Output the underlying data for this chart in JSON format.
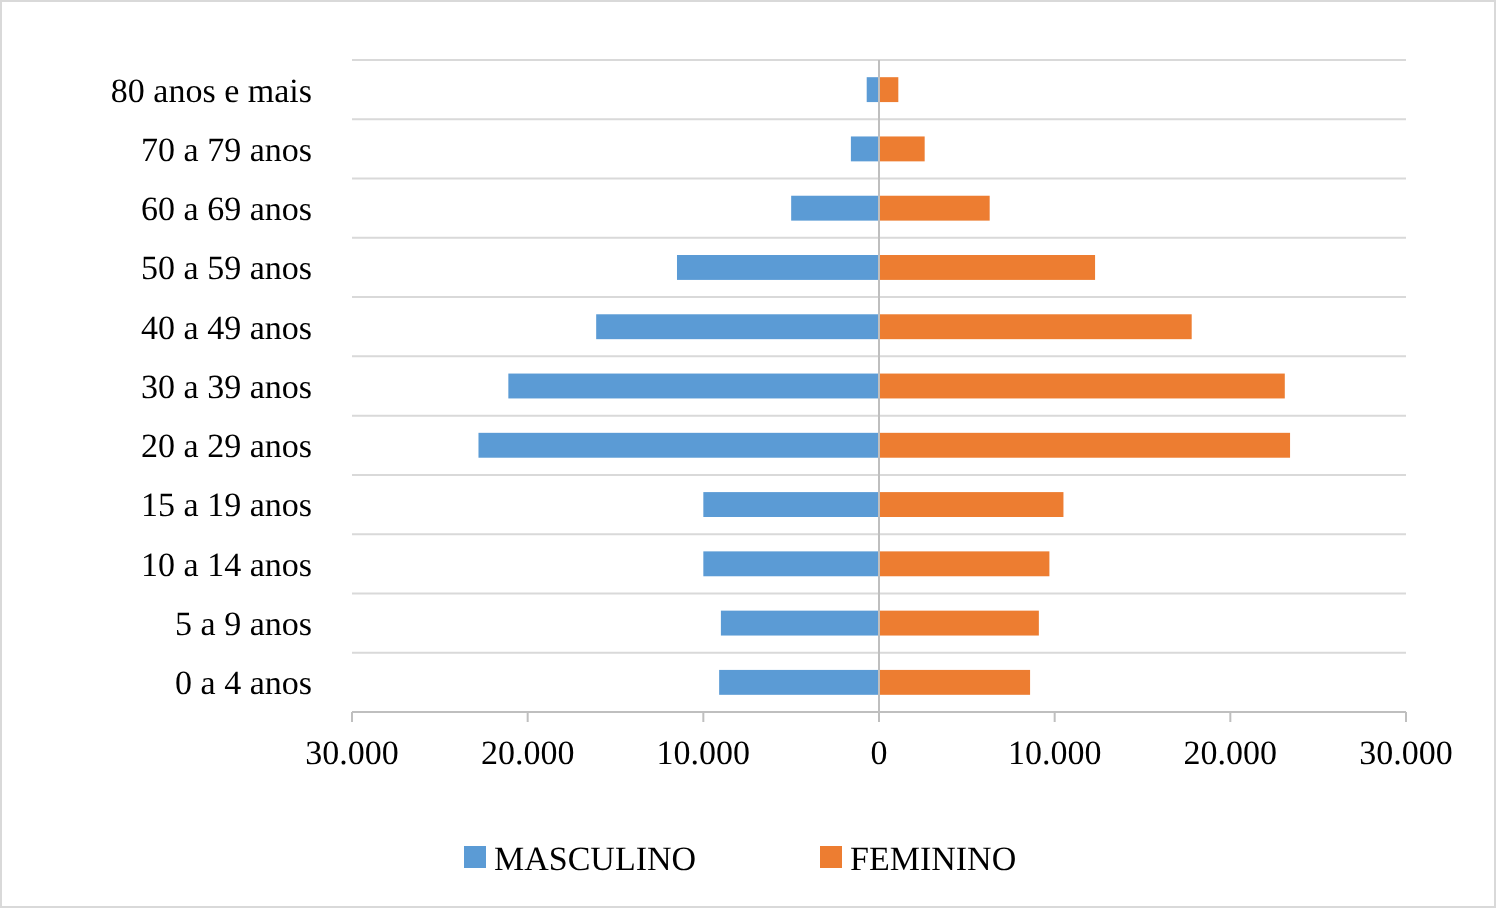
{
  "chart_data": {
    "type": "bar",
    "orientation": "horizontal",
    "stacked": true,
    "grid": "y",
    "legend": "bottom",
    "categories": [
      "80 anos e mais",
      "70 a 79 anos",
      "60 a 69 anos",
      "50 a 59 anos",
      "40 a 49 anos",
      "30 a 39 anos",
      "20 a 29 anos",
      "15 a 19 anos",
      "10 a 14 anos",
      "5 a 9 anos",
      "0 a 4 anos"
    ],
    "series": [
      {
        "name": "MASCULINO",
        "color": "#5b9bd5",
        "values": [
          -700,
          -1600,
          -5000,
          -11500,
          -16100,
          -21100,
          -22800,
          -10000,
          -10000,
          -9000,
          -9100
        ]
      },
      {
        "name": "FEMININO",
        "color": "#ed7d31",
        "values": [
          1100,
          2600,
          6300,
          12300,
          17800,
          23100,
          23400,
          10500,
          9700,
          9100,
          8600
        ]
      }
    ],
    "xlim": [
      -30000,
      30000
    ],
    "xticks": [
      {
        "value": -30000,
        "label": "30.000"
      },
      {
        "value": -20000,
        "label": "20.000"
      },
      {
        "value": -10000,
        "label": "10.000"
      },
      0,
      {
        "value": 10000,
        "label": "10.000"
      },
      {
        "value": 20000,
        "label": "20.000"
      },
      {
        "value": 30000,
        "label": "30.000"
      }
    ]
  }
}
